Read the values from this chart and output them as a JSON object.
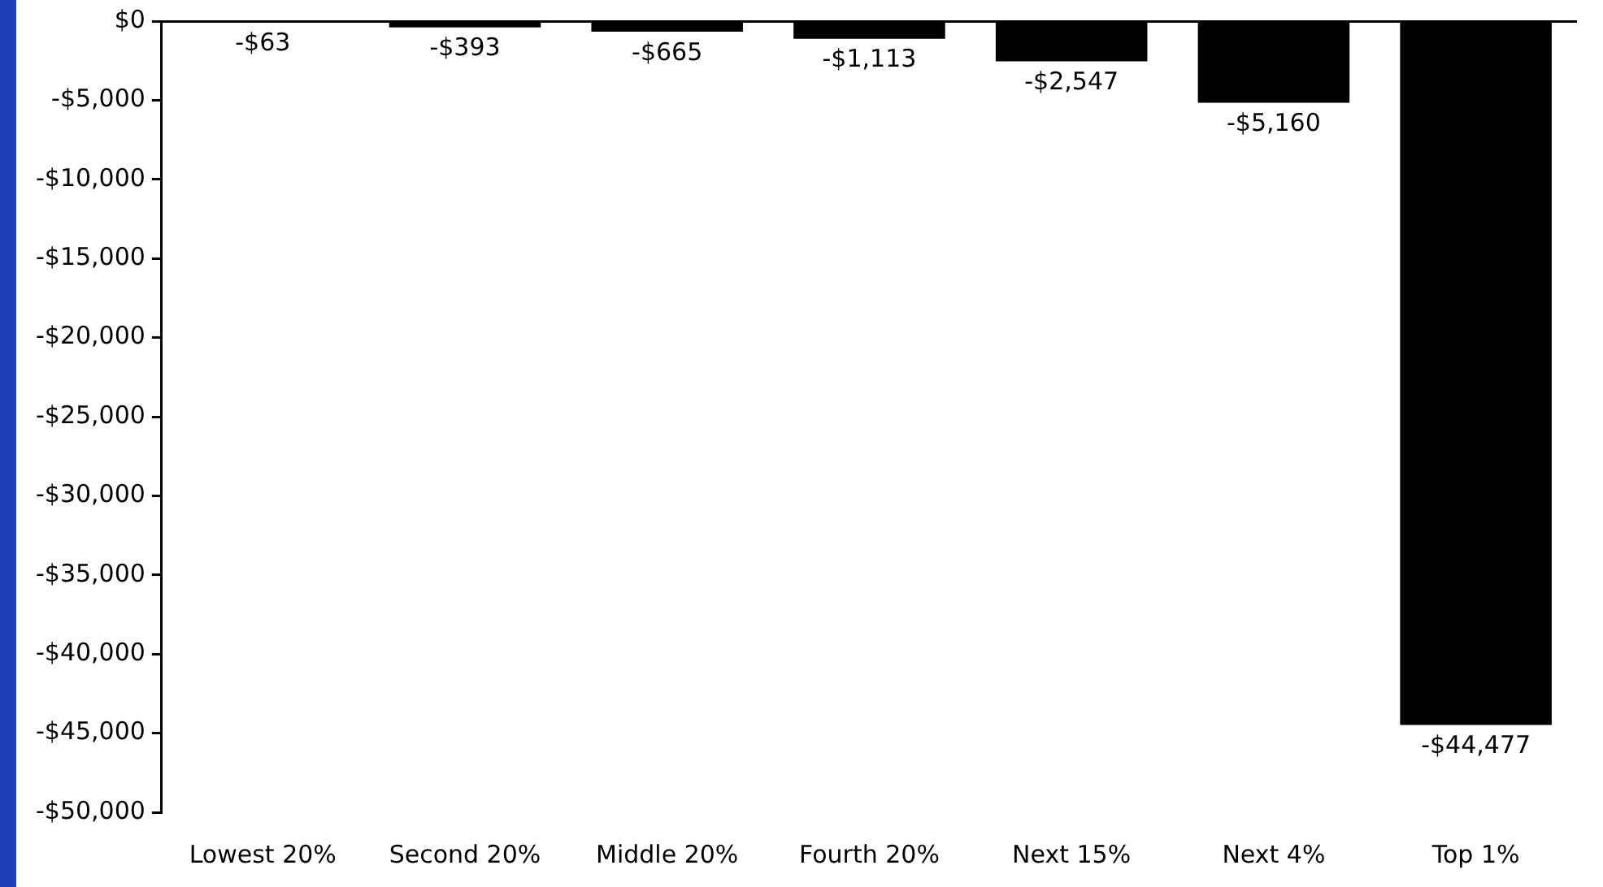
{
  "chart_data": {
    "type": "bar",
    "categories": [
      "Lowest 20%",
      "Second 20%",
      "Middle 20%",
      "Fourth 20%",
      "Next 15%",
      "Next 4%",
      "Top 1%"
    ],
    "values": [
      -63,
      -393,
      -665,
      -1113,
      -2547,
      -5160,
      -44477
    ],
    "value_labels": [
      "-$63",
      "-$393",
      "-$665",
      "-$1,113",
      "-$2,547",
      "-$5,160",
      "-$44,477"
    ],
    "color": "#000000",
    "ylim": [
      -50000,
      0
    ],
    "yticks": [
      {
        "value": 0,
        "label": "$0"
      },
      {
        "value": -5000,
        "label": "-$5,000"
      },
      {
        "value": -10000,
        "label": "-$10,000"
      },
      {
        "value": -15000,
        "label": "-$15,000"
      },
      {
        "value": -20000,
        "label": "-$20,000"
      },
      {
        "value": -25000,
        "label": "-$25,000"
      },
      {
        "value": -30000,
        "label": "-$30,000"
      },
      {
        "value": -35000,
        "label": "-$35,000"
      },
      {
        "value": -40000,
        "label": "-$40,000"
      },
      {
        "value": -45000,
        "label": "-$45,000"
      },
      {
        "value": -50000,
        "label": "-$50,000"
      }
    ],
    "grid": false,
    "legend": false
  }
}
